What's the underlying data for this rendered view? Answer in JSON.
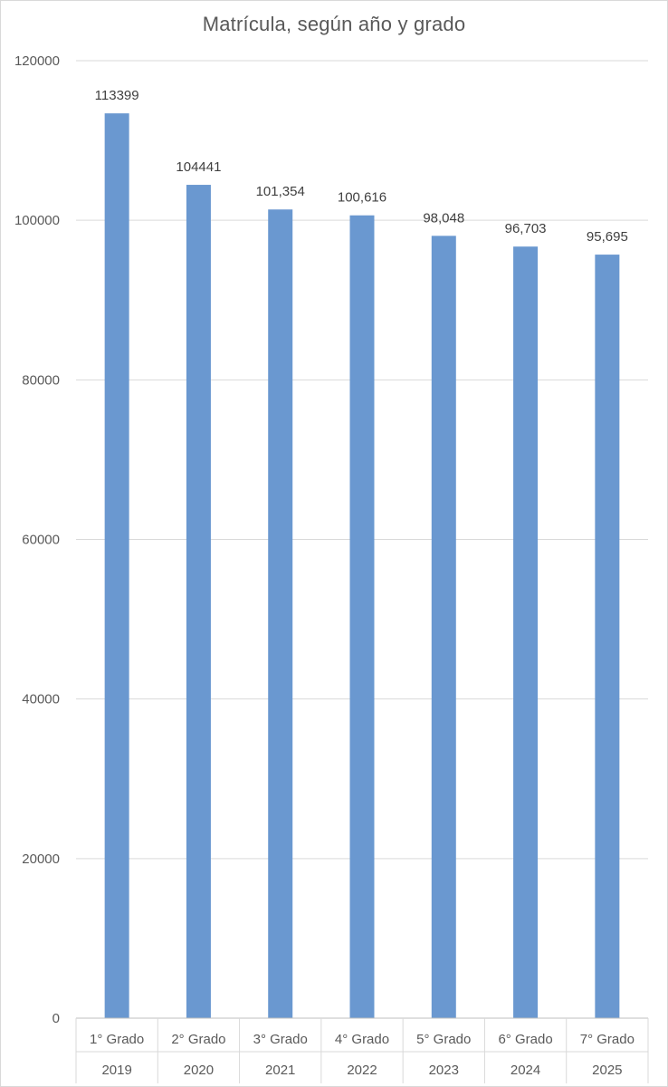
{
  "chart_data": {
    "type": "bar",
    "title": "Matrícula, según año y grado",
    "xlabel": "",
    "ylabel": "",
    "ylim": [
      0,
      120000
    ],
    "yticks": [
      0,
      20000,
      40000,
      60000,
      80000,
      100000,
      120000
    ],
    "ytick_labels": [
      "0",
      "20000",
      "40000",
      "60000",
      "80000",
      "100000",
      "120000"
    ],
    "grid": true,
    "legend": "none",
    "categories": [
      {
        "grade": "1° Grado",
        "year": "2019"
      },
      {
        "grade": "2° Grado",
        "year": "2020"
      },
      {
        "grade": "3° Grado",
        "year": "2021"
      },
      {
        "grade": "4° Grado",
        "year": "2022"
      },
      {
        "grade": "5° Grado",
        "year": "2023"
      },
      {
        "grade": "6° Grado",
        "year": "2024"
      },
      {
        "grade": "7° Grado",
        "year": "2025"
      }
    ],
    "values": [
      113399,
      104441,
      101354,
      100616,
      98048,
      96703,
      95695
    ],
    "data_labels": [
      "113399",
      "104441",
      "101,354",
      "100,616",
      "98,048",
      "96,703",
      "95,695"
    ],
    "colors": {
      "bar": "#6a98d0",
      "grid": "#d9d9d9",
      "axis": "#bfbfbf",
      "text": "#595959"
    }
  }
}
